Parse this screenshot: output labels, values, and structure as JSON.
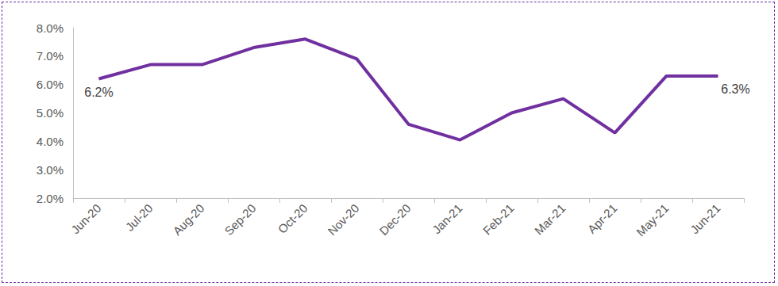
{
  "chart_data": {
    "type": "line",
    "categories": [
      "Jun-20",
      "Jul-20",
      "Aug-20",
      "Sep-20",
      "Oct-20",
      "Nov-20",
      "Dec-20",
      "Jan-21",
      "Feb-21",
      "Mar-21",
      "Apr-21",
      "May-21",
      "Jun-21"
    ],
    "values": [
      6.2,
      6.7,
      6.7,
      7.3,
      7.6,
      6.9,
      4.6,
      4.05,
      5.0,
      5.5,
      4.3,
      6.3,
      6.3
    ],
    "value_labels": [
      "6.2%",
      null,
      null,
      null,
      null,
      null,
      null,
      null,
      null,
      null,
      null,
      null,
      "6.3%"
    ],
    "data_labels": true,
    "color": "#7030a0",
    "ylim": [
      2,
      8
    ],
    "yticks": [
      {
        "value": 2,
        "label": "2.0%"
      },
      {
        "value": 3,
        "label": "3.0%"
      },
      {
        "value": 4,
        "label": "4.0%"
      },
      {
        "value": 5,
        "label": "5.0%"
      },
      {
        "value": 6,
        "label": "6.0%"
      },
      {
        "value": 7,
        "label": "7.0%"
      },
      {
        "value": 8,
        "label": "8.0%"
      }
    ],
    "grid": false
  }
}
